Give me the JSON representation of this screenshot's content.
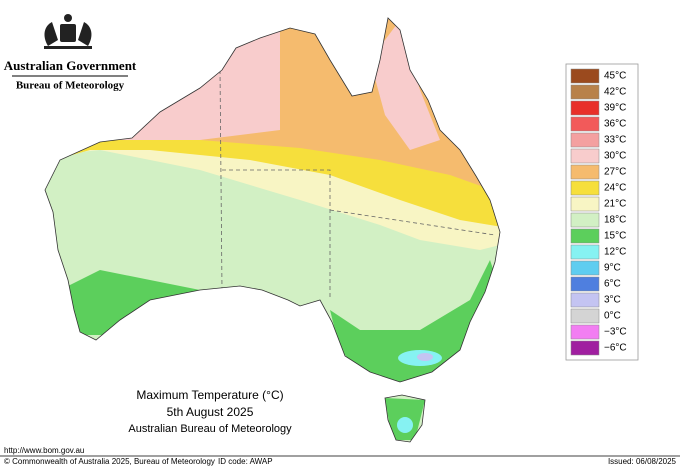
{
  "header": {
    "government": "Australian Government",
    "agency": "Bureau of Meteorology"
  },
  "legend": {
    "items": [
      {
        "label": "45°C",
        "color": "#9b4a1e"
      },
      {
        "label": "42°C",
        "color": "#b8814a"
      },
      {
        "label": "39°C",
        "color": "#e8302a"
      },
      {
        "label": "36°C",
        "color": "#f25a5a"
      },
      {
        "label": "33°C",
        "color": "#f4a0a0"
      },
      {
        "label": "30°C",
        "color": "#f8cccc"
      },
      {
        "label": "27°C",
        "color": "#f5bb6e"
      },
      {
        "label": "24°C",
        "color": "#f6df3c"
      },
      {
        "label": "21°C",
        "color": "#f8f5c4"
      },
      {
        "label": "18°C",
        "color": "#d2f0c4"
      },
      {
        "label": "15°C",
        "color": "#5ccf5c"
      },
      {
        "label": "12°C",
        "color": "#86f2f2"
      },
      {
        "label": "9°C",
        "color": "#5fcdf0"
      },
      {
        "label": "6°C",
        "color": "#4f7fdf"
      },
      {
        "label": "3°C",
        "color": "#c4c4f2"
      },
      {
        "label": "0°C",
        "color": "#d4d4d4"
      },
      {
        "label": "−3°C",
        "color": "#f27ef2"
      },
      {
        "label": "−6°C",
        "color": "#a01fa0"
      }
    ]
  },
  "caption": {
    "title": "Maximum Temperature (°C)",
    "date": "5th August 2025",
    "source": "Australian Bureau of Meteorology"
  },
  "footer": {
    "url": "http://www.bom.gov.au",
    "copyright": "© Commonwealth of Australia 2025, Bureau of Meteorology",
    "id_code": "ID code: AWAP",
    "issued": "Issued: 06/08/2025"
  }
}
